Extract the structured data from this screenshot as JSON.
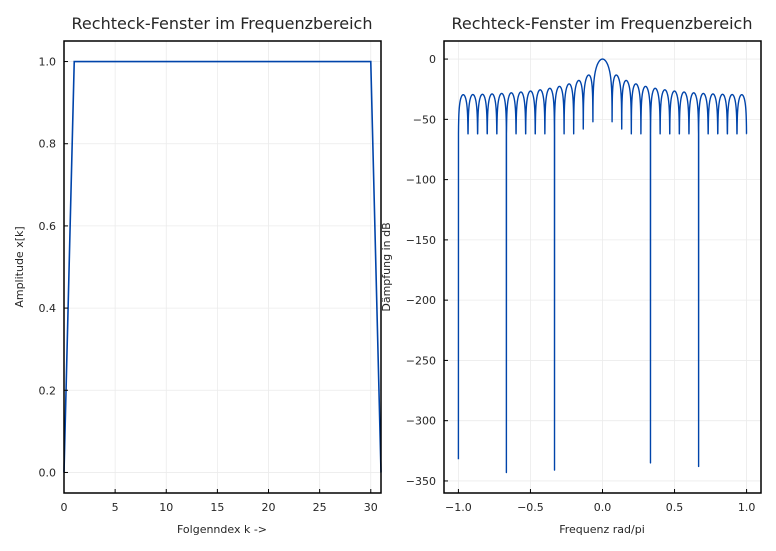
{
  "chart_data": [
    {
      "type": "line",
      "title": "Rechteck-Fenster im Frequenzbereich",
      "xlabel": "Folgenndex k ->",
      "ylabel": "Amplitude x[k]",
      "xlim": [
        0,
        31
      ],
      "ylim": [
        -0.05,
        1.05
      ],
      "xticks": [
        0,
        5,
        10,
        15,
        20,
        25,
        30
      ],
      "xtick_labels": [
        "0",
        "5",
        "10",
        "15",
        "20",
        "25",
        "30"
      ],
      "yticks": [
        0.0,
        0.2,
        0.4,
        0.6,
        0.8,
        1.0
      ],
      "ytick_labels": [
        "0.0",
        "0.2",
        "0.4",
        "0.6",
        "0.8",
        "1.0"
      ],
      "grid": true,
      "series": [
        {
          "x": [
            0,
            1,
            30,
            31
          ],
          "y": [
            0,
            1,
            1,
            0
          ],
          "color": "#0044aa"
        }
      ]
    },
    {
      "type": "line",
      "title": "Rechteck-Fenster im Frequenzbereich",
      "xlabel": "Frequenz rad/pi",
      "ylabel": "Dämpfung in dB",
      "xlim": [
        -1.1,
        1.1
      ],
      "ylim": [
        -360,
        15
      ],
      "xticks": [
        -1.0,
        -0.5,
        0.0,
        0.5,
        1.0
      ],
      "xtick_labels": [
        "−1.0",
        "−0.5",
        "0.0",
        "0.5",
        "1.0"
      ],
      "yticks": [
        0,
        -50,
        -100,
        -150,
        -200,
        -250,
        -300,
        -350
      ],
      "ytick_labels": [
        "0",
        "−50",
        "−100",
        "−150",
        "−200",
        "−250",
        "−300",
        "−350"
      ],
      "grid": true,
      "series": [
        {
          "function": "20*log10(|sin(15*pi*f)/(30*sin(pi*f/2))|)",
          "window_length": 30,
          "x_range": [
            -1.0,
            1.0
          ],
          "color": "#0044aa"
        }
      ],
      "deep_nulls": [
        {
          "x": -1.0,
          "y": -332
        },
        {
          "x": -0.667,
          "y": -343
        },
        {
          "x": -0.333,
          "y": -341
        },
        {
          "x": 0.333,
          "y": -335
        },
        {
          "x": 0.667,
          "y": -338
        }
      ]
    }
  ]
}
